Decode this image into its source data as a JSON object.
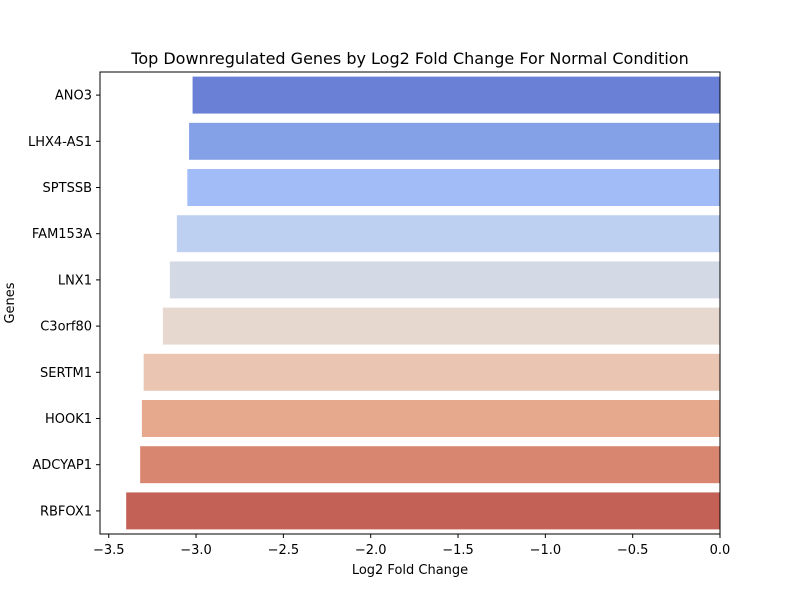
{
  "chart_data": {
    "type": "bar",
    "orientation": "horizontal",
    "title": "Top Downregulated Genes by Log2 Fold Change For Normal Condition",
    "xlabel": "Log2 Fold Change",
    "ylabel": "Genes",
    "xlim": [
      -3.55,
      0.0
    ],
    "xticks": [
      -3.5,
      -3.0,
      -2.5,
      -2.0,
      -1.5,
      -1.0,
      -0.5,
      0.0
    ],
    "xtick_labels": [
      "−3.5",
      "−3.0",
      "−2.5",
      "−2.0",
      "−1.5",
      "−1.0",
      "−0.5",
      "0.0"
    ],
    "grid": false,
    "categories": [
      "ANO3",
      "LHX4-AS1",
      "SPTSSB",
      "FAM153A",
      "LNX1",
      "C3orf80",
      "SERTM1",
      "HOOK1",
      "ADCYAP1",
      "RBFOX1"
    ],
    "values": [
      -3.02,
      -3.04,
      -3.05,
      -3.11,
      -3.15,
      -3.19,
      -3.3,
      -3.31,
      -3.32,
      -3.4
    ],
    "colors": [
      "#6a80d6",
      "#84a1e7",
      "#a1bcf6",
      "#bdd0f1",
      "#d4dae5",
      "#e6d7cf",
      "#eac5b2",
      "#e7a98d",
      "#d8866f",
      "#c36156"
    ],
    "palette": "coolwarm"
  }
}
